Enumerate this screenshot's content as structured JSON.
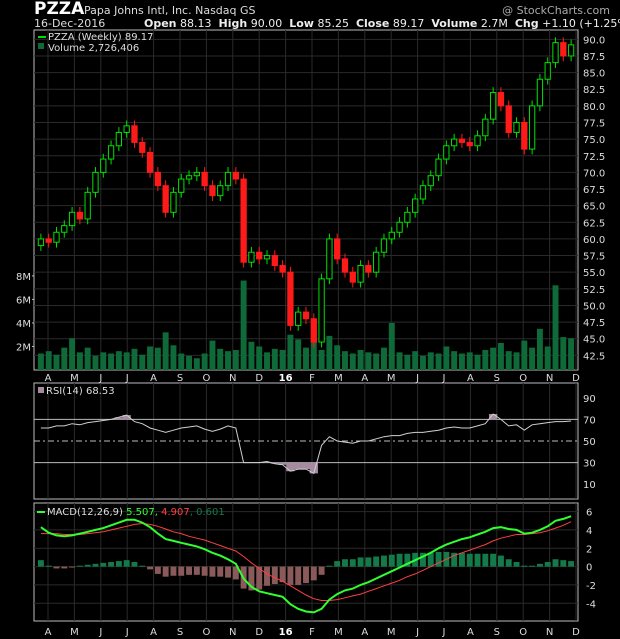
{
  "header": {
    "symbol": "PZZA",
    "company": "Papa Johns Intl, Inc.",
    "exchange": "Nasdaq GS",
    "brand": "@ StockCharts.com",
    "date": "16-Dec-2016",
    "open_label": "Open",
    "open": "88.13",
    "high_label": "High",
    "high": "90.00",
    "low_label": "Low",
    "low": "85.25",
    "close_label": "Close",
    "close": "89.17",
    "volume_label": "Volume",
    "volume": "2.7M",
    "chg_label": "Chg",
    "chg": "+1.10 (+1.25%)",
    "chg_arrow": "▲"
  },
  "legends": {
    "price": "PZZA (Weekly) 89.17",
    "volume": "Volume 2,726,406",
    "rsi": "RSI(14) 68.53",
    "macd_name": "MACD(12,26,9)",
    "macd_val": "5.507",
    "signal_val": "4.907",
    "hist_val": "0.601"
  },
  "colors": {
    "up": "#00e000",
    "down": "#ff1a1a",
    "volume": "#0f6a3a",
    "rsi_line": "#d0d0d0",
    "rsi_fill": "#a58aa0",
    "macd": "#30ff30",
    "signal": "#ff4040",
    "hist_pos": "#147a4a",
    "hist_neg": "#8a5a5a"
  },
  "chart_data": [
    {
      "type": "candlestick",
      "title": "PZZA (Weekly)",
      "y_ticks": [
        42.5,
        45.0,
        47.5,
        50.0,
        52.5,
        55.0,
        57.5,
        60.0,
        62.5,
        65.0,
        67.5,
        70.0,
        72.5,
        75.0,
        77.5,
        80.0,
        82.5,
        85.0,
        87.5,
        90.0
      ],
      "ylim": [
        41.5,
        90.8
      ],
      "x_ticks": [
        "A",
        "M",
        "J",
        "J",
        "A",
        "S",
        "O",
        "N",
        "D",
        "16",
        "F",
        "M",
        "A",
        "M",
        "J",
        "J",
        "A",
        "S",
        "O",
        "N",
        "D"
      ],
      "closes": [
        60.0,
        59.5,
        61.0,
        62.0,
        64.0,
        63.0,
        67.0,
        70.0,
        72.0,
        74.0,
        76.0,
        77.0,
        74.5,
        73.0,
        70.0,
        68.0,
        64.0,
        67.0,
        69.0,
        69.5,
        70.0,
        68.0,
        66.5,
        68.0,
        70.0,
        69.0,
        56.5,
        58.0,
        57.0,
        57.5,
        56.0,
        55.0,
        47.0,
        49.0,
        48.0,
        44.5,
        54.0,
        60.0,
        57.0,
        55.0,
        53.5,
        56.0,
        55.0,
        58.0,
        60.0,
        61.0,
        62.5,
        64.0,
        66.0,
        68.0,
        69.5,
        72.0,
        74.0,
        75.0,
        74.5,
        74.0,
        75.5,
        78.0,
        82.0,
        80.0,
        76.0,
        77.5,
        73.5,
        80.0,
        84.0,
        86.5,
        89.5,
        87.5,
        89.17
      ]
    },
    {
      "type": "bar",
      "title": "Volume",
      "y_ticks_label": [
        "2M",
        "4M",
        "6M",
        "8M"
      ],
      "y_ticks": [
        2000000,
        4000000,
        6000000,
        8000000
      ],
      "values": [
        1.4,
        1.6,
        1.3,
        1.9,
        2.7,
        1.5,
        1.9,
        1.2,
        1.5,
        1.4,
        1.6,
        1.5,
        1.8,
        1.3,
        2.0,
        1.9,
        3.2,
        2.1,
        1.4,
        1.2,
        1.0,
        1.4,
        2.5,
        1.8,
        1.6,
        1.7,
        7.6,
        2.4,
        2.0,
        1.5,
        1.8,
        1.7,
        3.0,
        2.6,
        1.9,
        2.8,
        1.7,
        2.9,
        2.1,
        1.6,
        1.4,
        1.7,
        1.5,
        1.4,
        1.9,
        4.0,
        1.5,
        1.3,
        1.6,
        1.2,
        1.5,
        1.4,
        2.0,
        1.6,
        1.4,
        1.5,
        1.3,
        1.7,
        1.9,
        2.3,
        1.6,
        1.5,
        2.5,
        1.9,
        3.5,
        2.0,
        7.2,
        2.8,
        2.7
      ]
    },
    {
      "type": "line",
      "title": "RSI(14)",
      "y_ticks": [
        10,
        30,
        50,
        70,
        90
      ],
      "ylim": [
        0,
        100
      ],
      "values": [
        62,
        62,
        64,
        64,
        66,
        65,
        67,
        68,
        69,
        70,
        72,
        74,
        68,
        66,
        62,
        60,
        58,
        60,
        62,
        63,
        64,
        61,
        59,
        61,
        64,
        62,
        30,
        30,
        30,
        31,
        29,
        28,
        22,
        24,
        24,
        20,
        46,
        54,
        50,
        49,
        48,
        50,
        50,
        52,
        54,
        55,
        55,
        57,
        58,
        58,
        59,
        60,
        62,
        63,
        62,
        62,
        64,
        66,
        75,
        70,
        64,
        65,
        60,
        65,
        66,
        67,
        68,
        68,
        68.53
      ]
    },
    {
      "type": "line",
      "title": "MACD(12,26,9)",
      "y_ticks": [
        -4,
        -2,
        0,
        2,
        4,
        6
      ],
      "ylim": [
        -5.5,
        6.5
      ],
      "series": [
        {
          "name": "MACD",
          "values": [
            4.3,
            3.7,
            3.4,
            3.3,
            3.4,
            3.6,
            3.8,
            4.0,
            4.2,
            4.5,
            4.8,
            5.1,
            5.1,
            4.8,
            4.3,
            3.6,
            3.0,
            2.8,
            2.6,
            2.4,
            2.2,
            1.9,
            1.5,
            1.2,
            0.8,
            0.3,
            -1.3,
            -2.2,
            -2.7,
            -2.9,
            -3.1,
            -3.3,
            -4.1,
            -4.6,
            -4.9,
            -5.0,
            -4.6,
            -3.6,
            -3.0,
            -2.6,
            -2.4,
            -2.0,
            -1.7,
            -1.3,
            -0.9,
            -0.5,
            -0.1,
            0.3,
            0.7,
            1.1,
            1.5,
            2.0,
            2.4,
            2.7,
            3.0,
            3.2,
            3.5,
            3.8,
            4.2,
            4.3,
            4.1,
            4.0,
            3.6,
            3.7,
            4.0,
            4.4,
            5.0,
            5.2,
            5.5
          ]
        },
        {
          "name": "Signal",
          "values": [
            3.6,
            3.6,
            3.6,
            3.5,
            3.5,
            3.5,
            3.6,
            3.7,
            3.8,
            4.0,
            4.2,
            4.4,
            4.6,
            4.7,
            4.6,
            4.4,
            4.1,
            3.8,
            3.6,
            3.3,
            3.1,
            2.9,
            2.6,
            2.3,
            2.0,
            1.7,
            1.1,
            0.4,
            -0.2,
            -0.8,
            -1.2,
            -1.6,
            -2.1,
            -2.6,
            -3.1,
            -3.5,
            -3.7,
            -3.7,
            -3.6,
            -3.4,
            -3.2,
            -3.0,
            -2.7,
            -2.4,
            -2.1,
            -1.8,
            -1.5,
            -1.1,
            -0.8,
            -0.4,
            0.0,
            0.4,
            0.8,
            1.2,
            1.5,
            1.8,
            2.1,
            2.4,
            2.8,
            3.1,
            3.3,
            3.5,
            3.5,
            3.6,
            3.7,
            3.9,
            4.2,
            4.5,
            4.9
          ]
        }
      ],
      "histogram": [
        0.7,
        0.1,
        -0.2,
        -0.2,
        -0.1,
        0.1,
        0.2,
        0.3,
        0.4,
        0.5,
        0.6,
        0.7,
        0.5,
        0.1,
        -0.3,
        -0.8,
        -1.1,
        -1.0,
        -1.0,
        -0.9,
        -0.9,
        -1.0,
        -1.1,
        -1.1,
        -1.2,
        -1.4,
        -2.4,
        -2.6,
        -2.5,
        -2.1,
        -1.9,
        -1.7,
        -2.0,
        -2.0,
        -1.8,
        -1.5,
        -0.9,
        0.1,
        0.6,
        0.8,
        0.8,
        1.0,
        1.0,
        1.1,
        1.2,
        1.3,
        1.4,
        1.4,
        1.5,
        1.5,
        1.5,
        1.6,
        1.6,
        1.5,
        1.5,
        1.4,
        1.4,
        1.4,
        1.4,
        1.2,
        0.8,
        0.5,
        0.1,
        0.1,
        0.3,
        0.5,
        0.8,
        0.7,
        0.601
      ]
    }
  ]
}
